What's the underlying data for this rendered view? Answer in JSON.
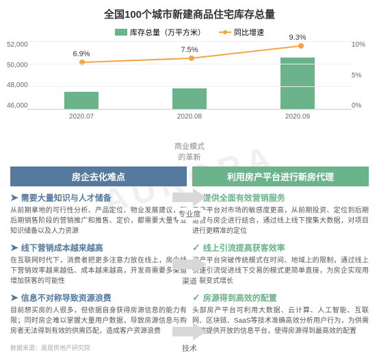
{
  "watermark": "AURORA",
  "chart": {
    "title": "全国100个城市新建商品住宅库存总量",
    "legend": {
      "bar": "库存总量（万平方米）",
      "line": "同比增速"
    },
    "bar_color": "#6bb38a",
    "line_color": "#f2a541",
    "categories": [
      "2020.07",
      "2020.08",
      "2020.09"
    ],
    "bar_values": [
      47500,
      47800,
      50500
    ],
    "line_values": [
      6.9,
      7.5,
      9.3
    ],
    "line_labels": [
      "6.9%",
      "7.5%",
      "9.3%"
    ],
    "yleft": {
      "min": 46000,
      "max": 52000,
      "ticks": [
        "52,000",
        "50,000",
        "48,000",
        "46,000"
      ]
    },
    "yright": {
      "ticks": [
        "10%",
        "5%",
        "0%"
      ]
    },
    "grid_color": "#eeeeee"
  },
  "middle_label": "商业模式\n的革新",
  "arrows": [
    "专业度",
    "渠道",
    "技术"
  ],
  "arrow_color": "#d8d8d8",
  "left": {
    "header": "房企去化难点",
    "header_bg": "#547a9e",
    "title_color": "#547a9e",
    "bullet": "➤",
    "sections": [
      {
        "title": "需要大量知识与人才储备",
        "body": "从前期拿地的可行性分析、产品定位、物业发展建议，到后期销售阶段的营销推广和推售、定价，都需要大量专业知识储备以及人力资源"
      },
      {
        "title": "线下营销成本越来越高",
        "body": "在互联网时代下，消费者把更多注意力放在线上，房企线下营销效率越来越低、成本越来越高，开发商需要多渠道增加获客的可能性"
      },
      {
        "title": "信息不对称导致资源浪费",
        "body": "目前想买房的人很多，但依据自身获得房源信息的能力有限；同时房企难以掌握大量用户数据，导致房源信息与购房者无法得到有效的供需匹配，造成客户资源浪费"
      }
    ]
  },
  "right": {
    "header": "利用房产平台进行新房代理",
    "header_bg": "#6bb38a",
    "title_color": "#6bb38a",
    "check": "✓",
    "sections": [
      {
        "title": "提供全面有效营销服务",
        "body": "房产平台对市场的敏感度更高，从前期投资、定位到后期运营与房企进行结合，通过线上线下搜集大数据，对项目进行更精准的定位"
      },
      {
        "title": "线上引流提高获客效率",
        "body": "房产平台突破传统模式在时间、地域上的限制，通过线上快速引流促进线下交易的模式更简单直接，为房企实现用户裂变式增长"
      },
      {
        "title": "房源得到高效的配置",
        "body": "头部房产平台可利用大数据、云计算、人工智能、互联网、区块链、SaaS等技术准确高效分析用户行为，为供需两端提供开放的信息平台，使得房源得到最高效的配置"
      }
    ]
  },
  "source": "数据来源：易居房地产研究院"
}
